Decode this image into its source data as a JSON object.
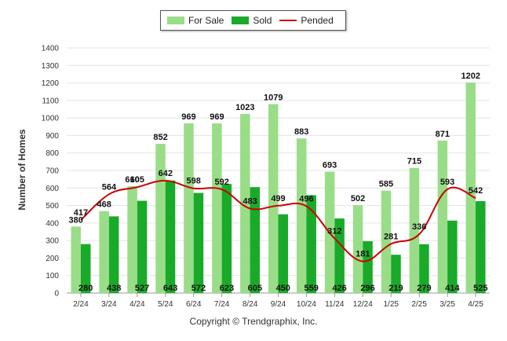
{
  "chart_data": {
    "type": "bar",
    "title": "",
    "xlabel": "",
    "ylabel": "Number of Homes",
    "ylim": [
      0,
      1400
    ],
    "yticks": [
      0,
      100,
      200,
      300,
      400,
      500,
      600,
      700,
      800,
      900,
      1000,
      1100,
      1200,
      1300,
      1400
    ],
    "grid": true,
    "legend_position": "top-center",
    "categories": [
      "2/24",
      "3/24",
      "4/24",
      "5/24",
      "6/24",
      "7/24",
      "8/24",
      "9/24",
      "10/24",
      "11/24",
      "12/24",
      "1/25",
      "2/25",
      "3/25",
      "4/25"
    ],
    "series": [
      {
        "name": "For Sale",
        "kind": "bar",
        "color": "#99dd88",
        "values": [
          380,
          468,
          610,
          852,
          969,
          969,
          1023,
          1079,
          883,
          693,
          502,
          585,
          715,
          871,
          1202
        ]
      },
      {
        "name": "Sold",
        "kind": "bar",
        "color": "#1aaa2a",
        "values": [
          280,
          438,
          527,
          643,
          572,
          623,
          605,
          450,
          559,
          426,
          296,
          219,
          279,
          414,
          525
        ]
      },
      {
        "name": "Pended",
        "kind": "line",
        "color": "#cc0000",
        "values": [
          417,
          564,
          605,
          642,
          598,
          592,
          483,
          499,
          496,
          312,
          181,
          281,
          336,
          593,
          542
        ]
      }
    ]
  },
  "footer": {
    "copyright": "Copyright © Trendgraphix, Inc."
  }
}
